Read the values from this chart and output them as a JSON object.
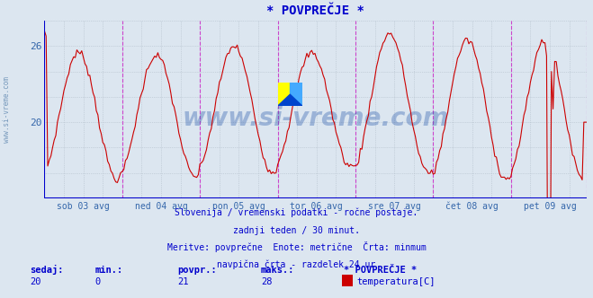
{
  "title": "* POVPREČJE *",
  "bg_color": "#dce6f0",
  "plot_bg_color": "#dce6f0",
  "line_color": "#cc0000",
  "grid_color": "#b0bcc8",
  "axis_color": "#0000cc",
  "vline_color": "#cc44cc",
  "hline_color": "#0000cc",
  "xlabel_color": "#3366aa",
  "ylabel_values": [
    20,
    26
  ],
  "ylim": [
    14,
    28
  ],
  "xlim": [
    0,
    335
  ],
  "n_points": 336,
  "x_tick_positions": [
    24,
    72,
    120,
    168,
    216,
    264,
    312
  ],
  "x_tick_labels": [
    "sob 03 avg",
    "ned 04 avg",
    "pon 05 avg",
    "tor 06 avg",
    "sre 07 avg",
    "čet 08 avg",
    "pet 09 avg"
  ],
  "vline_positions": [
    48,
    96,
    144,
    192,
    240,
    288,
    335
  ],
  "subtitle_line1": "Slovenija / vremenski podatki - ročne postaje.",
  "subtitle_line2": "zadnji teden / 30 minut.",
  "subtitle_line3": "Meritve: povprečne  Enote: metrične  Črta: minmum",
  "subtitle_line4": "navpična črta - razdelek 24 ur",
  "legend_title": "* POVPREČJE *",
  "legend_label": "temperatura[C]",
  "legend_color": "#cc0000",
  "stat_sedaj": 20,
  "stat_min": 0,
  "stat_povpr": 21,
  "stat_maks": 28,
  "watermark_text": "www.si-vreme.com",
  "watermark_color": "#2255aa",
  "watermark_alpha": 0.35,
  "left_watermark": "www.si-vreme.com"
}
